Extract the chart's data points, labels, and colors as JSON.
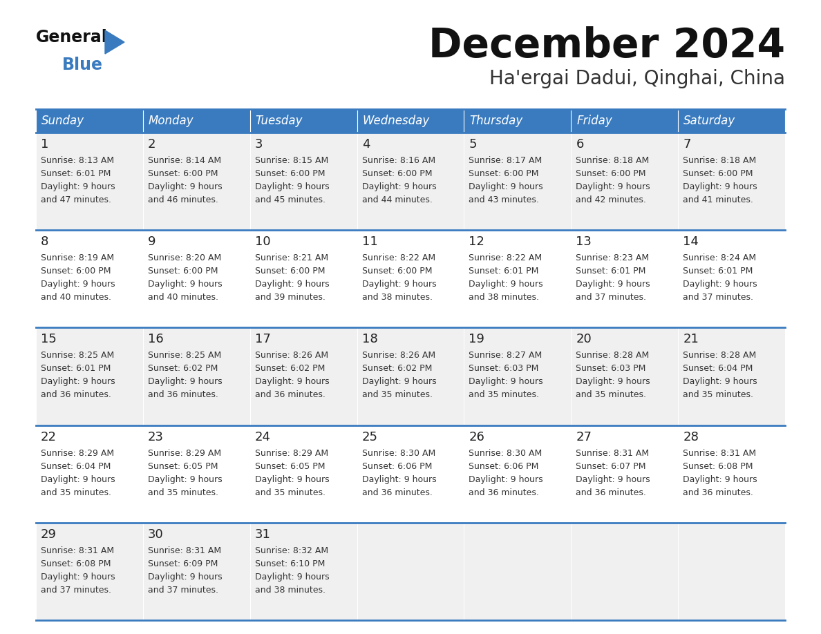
{
  "title": "December 2024",
  "subtitle": "Ha'ergai Dadui, Qinghai, China",
  "header_color": "#3a7bbf",
  "header_text_color": "#ffffff",
  "bg_color": "#ffffff",
  "cell_bg_odd": "#f0f0f0",
  "cell_bg_even": "#ffffff",
  "separator_color": "#3a7bbf",
  "days_of_week": [
    "Sunday",
    "Monday",
    "Tuesday",
    "Wednesday",
    "Thursday",
    "Friday",
    "Saturday"
  ],
  "calendar_data": [
    [
      {
        "day": 1,
        "sunrise": "8:13 AM",
        "sunset": "6:01 PM",
        "daylight_hours": 9,
        "daylight_minutes": 47
      },
      {
        "day": 2,
        "sunrise": "8:14 AM",
        "sunset": "6:00 PM",
        "daylight_hours": 9,
        "daylight_minutes": 46
      },
      {
        "day": 3,
        "sunrise": "8:15 AM",
        "sunset": "6:00 PM",
        "daylight_hours": 9,
        "daylight_minutes": 45
      },
      {
        "day": 4,
        "sunrise": "8:16 AM",
        "sunset": "6:00 PM",
        "daylight_hours": 9,
        "daylight_minutes": 44
      },
      {
        "day": 5,
        "sunrise": "8:17 AM",
        "sunset": "6:00 PM",
        "daylight_hours": 9,
        "daylight_minutes": 43
      },
      {
        "day": 6,
        "sunrise": "8:18 AM",
        "sunset": "6:00 PM",
        "daylight_hours": 9,
        "daylight_minutes": 42
      },
      {
        "day": 7,
        "sunrise": "8:18 AM",
        "sunset": "6:00 PM",
        "daylight_hours": 9,
        "daylight_minutes": 41
      }
    ],
    [
      {
        "day": 8,
        "sunrise": "8:19 AM",
        "sunset": "6:00 PM",
        "daylight_hours": 9,
        "daylight_minutes": 40
      },
      {
        "day": 9,
        "sunrise": "8:20 AM",
        "sunset": "6:00 PM",
        "daylight_hours": 9,
        "daylight_minutes": 40
      },
      {
        "day": 10,
        "sunrise": "8:21 AM",
        "sunset": "6:00 PM",
        "daylight_hours": 9,
        "daylight_minutes": 39
      },
      {
        "day": 11,
        "sunrise": "8:22 AM",
        "sunset": "6:00 PM",
        "daylight_hours": 9,
        "daylight_minutes": 38
      },
      {
        "day": 12,
        "sunrise": "8:22 AM",
        "sunset": "6:01 PM",
        "daylight_hours": 9,
        "daylight_minutes": 38
      },
      {
        "day": 13,
        "sunrise": "8:23 AM",
        "sunset": "6:01 PM",
        "daylight_hours": 9,
        "daylight_minutes": 37
      },
      {
        "day": 14,
        "sunrise": "8:24 AM",
        "sunset": "6:01 PM",
        "daylight_hours": 9,
        "daylight_minutes": 37
      }
    ],
    [
      {
        "day": 15,
        "sunrise": "8:25 AM",
        "sunset": "6:01 PM",
        "daylight_hours": 9,
        "daylight_minutes": 36
      },
      {
        "day": 16,
        "sunrise": "8:25 AM",
        "sunset": "6:02 PM",
        "daylight_hours": 9,
        "daylight_minutes": 36
      },
      {
        "day": 17,
        "sunrise": "8:26 AM",
        "sunset": "6:02 PM",
        "daylight_hours": 9,
        "daylight_minutes": 36
      },
      {
        "day": 18,
        "sunrise": "8:26 AM",
        "sunset": "6:02 PM",
        "daylight_hours": 9,
        "daylight_minutes": 35
      },
      {
        "day": 19,
        "sunrise": "8:27 AM",
        "sunset": "6:03 PM",
        "daylight_hours": 9,
        "daylight_minutes": 35
      },
      {
        "day": 20,
        "sunrise": "8:28 AM",
        "sunset": "6:03 PM",
        "daylight_hours": 9,
        "daylight_minutes": 35
      },
      {
        "day": 21,
        "sunrise": "8:28 AM",
        "sunset": "6:04 PM",
        "daylight_hours": 9,
        "daylight_minutes": 35
      }
    ],
    [
      {
        "day": 22,
        "sunrise": "8:29 AM",
        "sunset": "6:04 PM",
        "daylight_hours": 9,
        "daylight_minutes": 35
      },
      {
        "day": 23,
        "sunrise": "8:29 AM",
        "sunset": "6:05 PM",
        "daylight_hours": 9,
        "daylight_minutes": 35
      },
      {
        "day": 24,
        "sunrise": "8:29 AM",
        "sunset": "6:05 PM",
        "daylight_hours": 9,
        "daylight_minutes": 35
      },
      {
        "day": 25,
        "sunrise": "8:30 AM",
        "sunset": "6:06 PM",
        "daylight_hours": 9,
        "daylight_minutes": 36
      },
      {
        "day": 26,
        "sunrise": "8:30 AM",
        "sunset": "6:06 PM",
        "daylight_hours": 9,
        "daylight_minutes": 36
      },
      {
        "day": 27,
        "sunrise": "8:31 AM",
        "sunset": "6:07 PM",
        "daylight_hours": 9,
        "daylight_minutes": 36
      },
      {
        "day": 28,
        "sunrise": "8:31 AM",
        "sunset": "6:08 PM",
        "daylight_hours": 9,
        "daylight_minutes": 36
      }
    ],
    [
      {
        "day": 29,
        "sunrise": "8:31 AM",
        "sunset": "6:08 PM",
        "daylight_hours": 9,
        "daylight_minutes": 37
      },
      {
        "day": 30,
        "sunrise": "8:31 AM",
        "sunset": "6:09 PM",
        "daylight_hours": 9,
        "daylight_minutes": 37
      },
      {
        "day": 31,
        "sunrise": "8:32 AM",
        "sunset": "6:10 PM",
        "daylight_hours": 9,
        "daylight_minutes": 38
      },
      null,
      null,
      null,
      null
    ]
  ]
}
